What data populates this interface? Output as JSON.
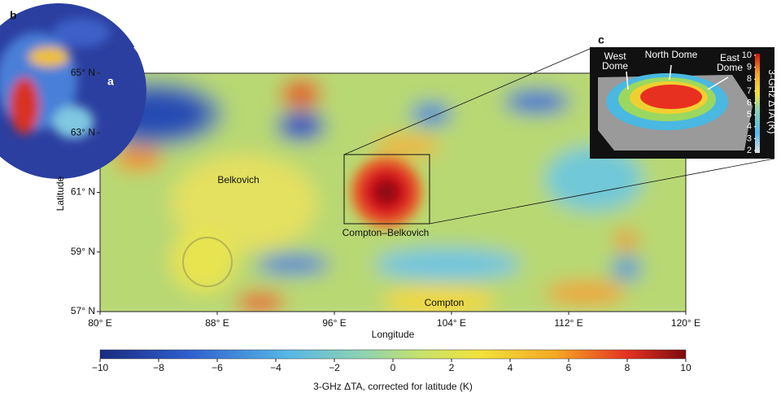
{
  "globe": {
    "label": "b"
  },
  "map": {
    "label": "a",
    "xlabel": "Longitude",
    "ylabel": "Latitude",
    "xlim": [
      80,
      120
    ],
    "xticks": [
      {
        "value": 80,
        "label": "80° E"
      },
      {
        "value": 88,
        "label": "88° E"
      },
      {
        "value": 96,
        "label": "96° E"
      },
      {
        "value": 104,
        "label": "104° E"
      },
      {
        "value": 112,
        "label": "112° E"
      },
      {
        "value": 120,
        "label": "120° E"
      }
    ],
    "ylim": [
      57,
      65
    ],
    "yticks": [
      {
        "value": 57,
        "label": "57° N"
      },
      {
        "value": 59,
        "label": "59° N"
      },
      {
        "value": 61,
        "label": "61° N"
      },
      {
        "value": 63,
        "label": "63° N"
      },
      {
        "value": 65,
        "label": "65° N"
      }
    ],
    "places": [
      "Belkovich",
      "Compton–Belkovich",
      "Compton"
    ]
  },
  "colorbar": {
    "lim": [
      -10,
      10
    ],
    "ticks": [
      {
        "value": -10,
        "label": "−10"
      },
      {
        "value": -8,
        "label": "−8"
      },
      {
        "value": -6,
        "label": "−6"
      },
      {
        "value": -4,
        "label": "−4"
      },
      {
        "value": -2,
        "label": "−2"
      },
      0,
      2,
      4,
      6,
      8,
      10
    ],
    "label": "3-GHz ΔTA, corrected for latitude (K)"
  },
  "inset": {
    "label": "c",
    "domes": [
      [
        "West",
        "Dome"
      ],
      [
        "North Dome"
      ],
      [
        "East",
        "Dome"
      ]
    ],
    "colorbar": {
      "label": "3-GHz ΔTA (K)",
      "lim": [
        2,
        10
      ],
      "ticks": [
        10,
        9,
        8,
        7,
        6,
        5,
        4,
        3,
        2
      ]
    }
  }
}
